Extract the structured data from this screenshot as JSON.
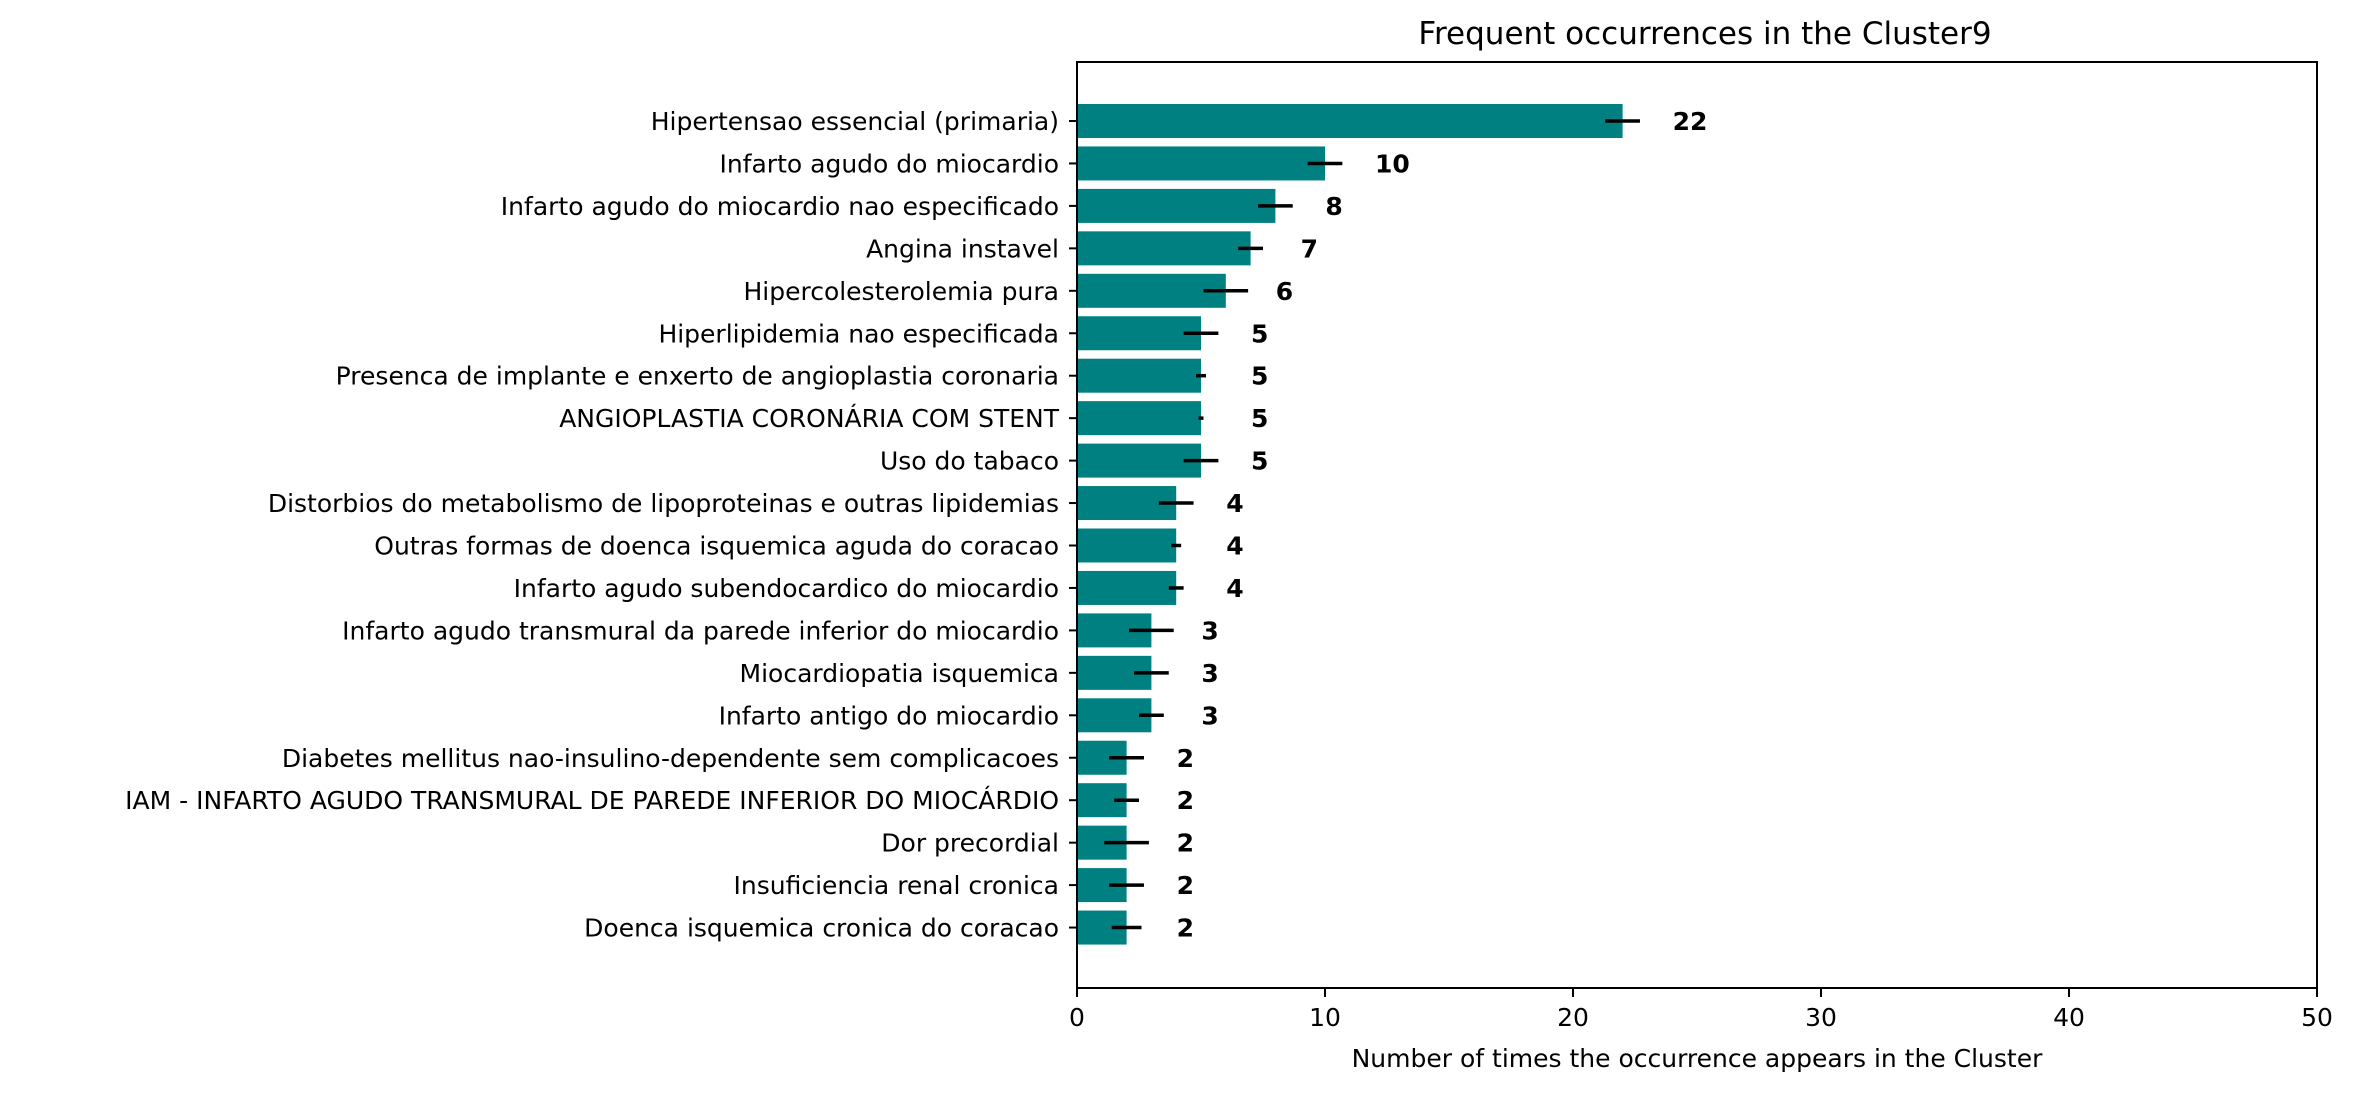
{
  "chart_data": {
    "type": "bar",
    "orientation": "horizontal",
    "title": "Frequent occurrences in the Cluster9",
    "xlabel": "Number of times the occurrence appears in the Cluster",
    "ylabel": "",
    "xlim": [
      0,
      50
    ],
    "xticks": [
      0,
      10,
      20,
      30,
      40,
      50
    ],
    "bar_color": "#008080",
    "error_color": "#000000",
    "grid": false,
    "categories": [
      "Hipertensao essencial (primaria)",
      "Infarto agudo do miocardio",
      "Infarto agudo do miocardio nao especificado",
      "Angina instavel",
      "Hipercolesterolemia pura",
      "Hiperlipidemia nao especificada",
      "Presenca de implante e enxerto de angioplastia coronaria",
      "ANGIOPLASTIA CORONÁRIA COM STENT",
      "Uso do tabaco",
      "Distorbios do metabolismo de lipoproteinas e outras lipidemias",
      "Outras formas de doenca isquemica aguda do coracao",
      "Infarto agudo subendocardico do miocardio",
      "Infarto agudo transmural da parede inferior do miocardio",
      "Miocardiopatia isquemica",
      "Infarto antigo do miocardio",
      "Diabetes mellitus nao-insulino-dependente sem complicacoes",
      "IAM - INFARTO AGUDO TRANSMURAL DE PAREDE INFERIOR DO MIOCÁRDIO",
      "Dor precordial",
      "Insuficiencia renal cronica",
      "Doenca isquemica cronica do coracao"
    ],
    "values": [
      22,
      10,
      8,
      7,
      6,
      5,
      5,
      5,
      5,
      4,
      4,
      4,
      3,
      3,
      3,
      2,
      2,
      2,
      2,
      2
    ],
    "errors": [
      0.7,
      0.7,
      0.7,
      0.5,
      0.9,
      0.7,
      0.2,
      0.1,
      0.7,
      0.7,
      0.2,
      0.3,
      0.9,
      0.7,
      0.5,
      0.7,
      0.5,
      0.9,
      0.7,
      0.6
    ],
    "data_labels": [
      "22",
      "10",
      "8",
      "7",
      "6",
      "5",
      "5",
      "5",
      "5",
      "4",
      "4",
      "4",
      "3",
      "3",
      "3",
      "2",
      "2",
      "2",
      "2",
      "2"
    ]
  }
}
